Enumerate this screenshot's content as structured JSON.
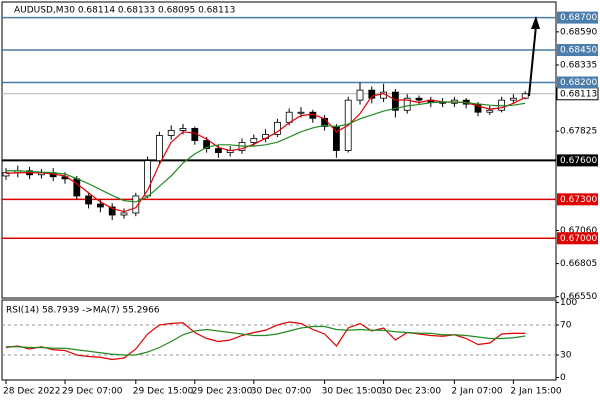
{
  "chart_data": [
    {
      "type": "candlestick",
      "title": "AUDUSD,M30  0.68114 0.68133 0.68095 0.68113",
      "categories": [
        "28 Dec 2022",
        null,
        null,
        null,
        null,
        "29 Dec 07:00",
        null,
        null,
        null,
        null,
        null,
        "29 Dec 15:00",
        null,
        null,
        null,
        null,
        "29 Dec 23:00",
        null,
        null,
        null,
        null,
        "30 Dec 07:00",
        null,
        null,
        null,
        null,
        null,
        "30 Dec 15:00",
        null,
        null,
        null,
        null,
        "30 Dec 23:00",
        null,
        null,
        null,
        null,
        null,
        "2 Jan 07:00",
        null,
        null,
        null,
        null,
        "2 Jan 15:00",
        null
      ],
      "open": [
        0.6748,
        0.67505,
        0.6752,
        0.67489,
        0.67505,
        0.67474,
        0.67458,
        0.67326,
        0.67264,
        0.67241,
        0.67179,
        0.67195,
        0.67326,
        0.67598,
        0.67792,
        0.67831,
        0.67846,
        0.67753,
        0.67691,
        0.6766,
        0.67676,
        0.67738,
        0.67769,
        0.678,
        0.67893,
        0.67971,
        0.67971,
        0.67924,
        0.67862,
        0.67676,
        0.68064,
        0.68141,
        0.68079,
        0.68126,
        0.67986,
        0.68079,
        0.68064,
        0.68048,
        0.6804,
        0.68064,
        0.68033,
        0.67971,
        0.67986,
        0.68064,
        0.68079
      ],
      "high": [
        0.6754,
        0.6756,
        0.6755,
        0.67535,
        0.6754,
        0.6751,
        0.6748,
        0.6735,
        0.673,
        0.6727,
        0.6723,
        0.6735,
        0.6763,
        0.6782,
        0.6787,
        0.6788,
        0.6786,
        0.6778,
        0.6772,
        0.6771,
        0.6777,
        0.678,
        0.6784,
        0.6792,
        0.68,
        0.6801,
        0.6799,
        0.6795,
        0.6788,
        0.6809,
        0.682,
        0.6817,
        0.6819,
        0.6815,
        0.6811,
        0.681,
        0.6809,
        0.6808,
        0.6809,
        0.6808,
        0.6805,
        0.6802,
        0.6809,
        0.6811,
        0.68133
      ],
      "low": [
        0.6745,
        0.6747,
        0.67455,
        0.6746,
        0.6744,
        0.6742,
        0.673,
        0.6723,
        0.672,
        0.6714,
        0.6715,
        0.6717,
        0.6731,
        0.6757,
        0.6776,
        0.678,
        0.6772,
        0.6766,
        0.6762,
        0.6763,
        0.6765,
        0.6771,
        0.6774,
        0.6778,
        0.6787,
        0.6793,
        0.6789,
        0.6783,
        0.6762,
        0.6766,
        0.6803,
        0.6804,
        0.6805,
        0.6793,
        0.6796,
        0.6803,
        0.6801,
        0.6801,
        0.6801,
        0.68,
        0.6794,
        0.6795,
        0.6797,
        0.6804,
        0.6807
      ],
      "close": [
        0.67505,
        0.6752,
        0.67489,
        0.67505,
        0.67474,
        0.67458,
        0.67326,
        0.67264,
        0.67241,
        0.67179,
        0.67195,
        0.67326,
        0.67598,
        0.67792,
        0.67831,
        0.67846,
        0.67753,
        0.67691,
        0.6766,
        0.67676,
        0.67738,
        0.67769,
        0.678,
        0.67893,
        0.67971,
        0.67971,
        0.67924,
        0.67862,
        0.67676,
        0.68064,
        0.68141,
        0.68079,
        0.68126,
        0.67986,
        0.68079,
        0.68064,
        0.68048,
        0.6804,
        0.68064,
        0.68033,
        0.67971,
        0.67986,
        0.68064,
        0.68079,
        0.68113
      ],
      "series": [
        {
          "color": "#e00000",
          "values": [
            0.675,
            0.67505,
            0.67505,
            0.67505,
            0.67495,
            0.6748,
            0.6742,
            0.6735,
            0.6728,
            0.6723,
            0.67205,
            0.67235,
            0.6737,
            0.6757,
            0.6774,
            0.6782,
            0.6781,
            0.67765,
            0.677,
            0.67675,
            0.6769,
            0.67725,
            0.6777,
            0.6782,
            0.6789,
            0.67945,
            0.67955,
            0.6792,
            0.6782,
            0.6787,
            0.6796,
            0.68095,
            0.68115,
            0.68065,
            0.68065,
            0.68045,
            0.68065,
            0.6805,
            0.6805,
            0.68045,
            0.6802,
            0.67995,
            0.68005,
            0.6804,
            0.68085
          ]
        },
        {
          "color": "#228b22",
          "values": [
            0.6752,
            0.6752,
            0.67515,
            0.6751,
            0.67505,
            0.67495,
            0.6746,
            0.6742,
            0.67375,
            0.6733,
            0.6729,
            0.6728,
            0.6732,
            0.674,
            0.6748,
            0.6758,
            0.6765,
            0.677,
            0.6772,
            0.6772,
            0.6771,
            0.6771,
            0.6772,
            0.6774,
            0.6778,
            0.6782,
            0.6785,
            0.6787,
            0.6786,
            0.6788,
            0.6792,
            0.6795,
            0.6798,
            0.68,
            0.6802,
            0.6803,
            0.68045,
            0.6805,
            0.6805,
            0.68045,
            0.68035,
            0.68025,
            0.6802,
            0.68025,
            0.6804
          ]
        }
      ],
      "ylim": [
        0.6654,
        0.6882
      ],
      "yticks": [
        {
          "value": 0.6859,
          "label": "0.68590"
        },
        0.68335,
        0.67825,
        {
          "value": 0.6706,
          "label": "0.67060"
        },
        0.66805,
        {
          "value": 0.6655,
          "label": "0.66550"
        }
      ],
      "levels": {
        "values": [
          0.687,
          0.6845,
          0.682,
          0.676,
          0.673,
          0.67
        ],
        "value_labels": [
          "0.68700",
          "0.68450",
          "0.68200",
          "0.67600",
          "0.67300",
          "0.67000"
        ],
        "colors": [
          "#4a7cac",
          "#4a7cac",
          "#4a7cac",
          "#000000",
          "#e00000",
          "#e00000"
        ]
      },
      "current_price": 0.68113
    },
    {
      "type": "line",
      "title": "RSI(14) 58.7939 ->MA(7) 55.2966",
      "series": [
        {
          "color": "#e00000",
          "values": [
            40,
            42,
            38,
            41,
            37,
            36,
            30,
            28,
            27,
            24,
            26,
            38,
            58,
            70,
            72,
            73,
            60,
            52,
            48,
            50,
            56,
            60,
            63,
            70,
            74,
            72,
            64,
            58,
            42,
            66,
            72,
            62,
            66,
            50,
            60,
            58,
            56,
            55,
            57,
            52,
            44,
            46,
            58,
            59,
            58.7939
          ]
        },
        {
          "color": "#228b22",
          "values": [
            41,
            41,
            40,
            40,
            39,
            39,
            37,
            35,
            33,
            31,
            30,
            30,
            34,
            40,
            48,
            57,
            62,
            64,
            62,
            60,
            58,
            56,
            56,
            58,
            62,
            66,
            68,
            68,
            64,
            63,
            64,
            63,
            63,
            61,
            60,
            59,
            59,
            57,
            57,
            56,
            54,
            52,
            52,
            53,
            55.2966
          ]
        }
      ],
      "ylim": [
        0,
        100
      ],
      "yticks": [
        100,
        70,
        30,
        0
      ],
      "dashed": [
        70,
        30
      ]
    }
  ]
}
